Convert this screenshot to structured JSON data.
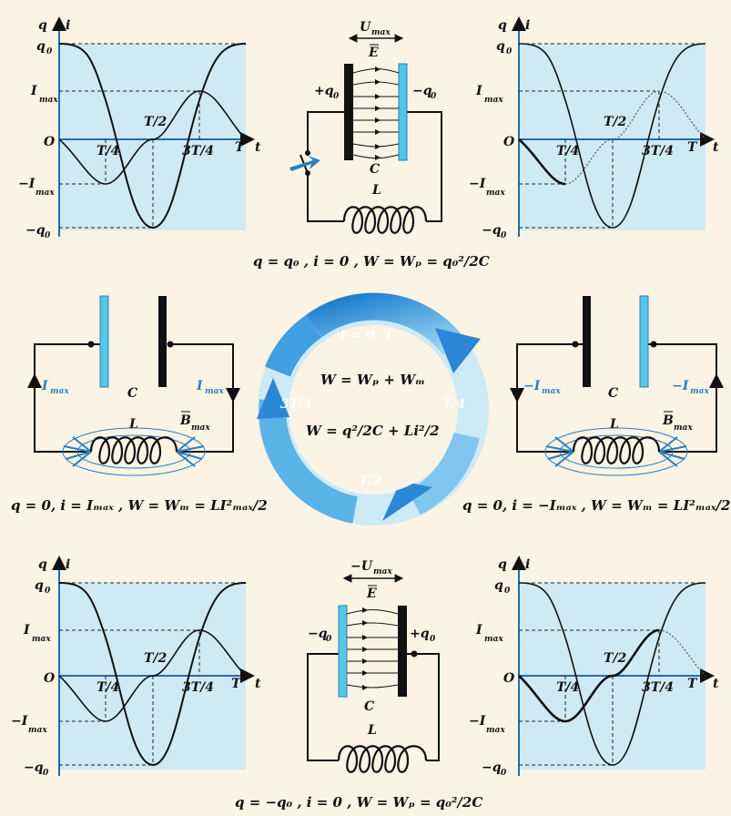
{
  "graphs": {
    "axis_q": "q",
    "axis_i": "i",
    "axis_t": "t",
    "origin": "O",
    "q0": "q",
    "q0_sub": "0",
    "neg_q0": "−q",
    "imax": "I",
    "imax_sub": "max",
    "neg_imax": "−I",
    "t_quarter": "T/4",
    "t_half": "T/2",
    "t_three_quarter": "3T/4",
    "t_full": "T"
  },
  "circuit_top": {
    "umax": "U",
    "umax_sub": "max",
    "field": "E",
    "left_plate_label": "+q",
    "right_plate_label": "−q",
    "plate_sub": "0",
    "capacitor": "C",
    "inductor": "L",
    "caption": "q = q₀ ,  i = 0 ,  W = Wₚ = q₀²/2C"
  },
  "circuit_left": {
    "current_left": "I",
    "current_right": "I",
    "current_sub": "max",
    "capacitor": "C",
    "inductor": "L",
    "field": "B",
    "field_sub": "max",
    "caption": "q = 0,  i = Iₘₐₓ ,  W = Wₘ = LI²ₘₐₓ/2"
  },
  "circuit_right": {
    "current_left": "−I",
    "current_right": "−I",
    "current_sub": "max",
    "capacitor": "C",
    "inductor": "L",
    "field": "B",
    "field_sub": "max",
    "caption": "q = 0,  i = −Iₘₐₓ ,  W = Wₘ = LI²ₘₐₓ/2"
  },
  "circuit_bottom": {
    "umax": "−U",
    "umax_sub": "max",
    "field": "E",
    "left_plate_label": "−q",
    "right_plate_label": "+q",
    "plate_sub": "0",
    "capacitor": "C",
    "inductor": "L",
    "caption": "q = −q₀ ,  i = 0 ,  W = Wₚ = q₀²/2C"
  },
  "cycle": {
    "start": "t = 0; T",
    "quarter": "T/4",
    "half": "T/2",
    "three_quarter": "3T/4",
    "energy_total": "W = Wₚ + Wₘ",
    "energy_formula": "W = q²/2C + Li²/2"
  },
  "colors": {
    "background": "#fbf3e3",
    "graph_fill": "#cfeaf4",
    "plate_blue": "#55c6e6",
    "ring": "#4aa6dc",
    "ink": "#111111"
  }
}
